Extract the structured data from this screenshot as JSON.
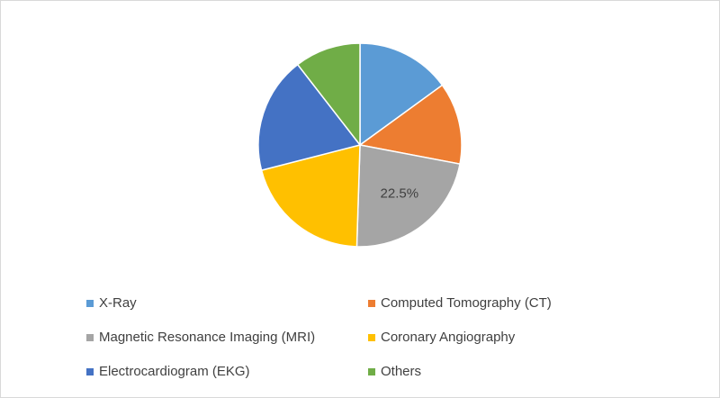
{
  "chart_data": {
    "type": "pie",
    "categories": [
      "X-Ray",
      "Computed Tomography (CT)",
      "Magnetic Resonance Imaging (MRI)",
      "Coronary Angiography",
      "Electrocardiogram (EKG)",
      "Others"
    ],
    "values": [
      15,
      13,
      22.5,
      20.5,
      18.5,
      10.5
    ],
    "value_labels": [
      null,
      null,
      "22.5%",
      null,
      null,
      null
    ],
    "colors": [
      "#5b9bd5",
      "#ed7d31",
      "#a5a5a5",
      "#ffc000",
      "#4472c4",
      "#70ad47"
    ],
    "legend": "bottom"
  }
}
